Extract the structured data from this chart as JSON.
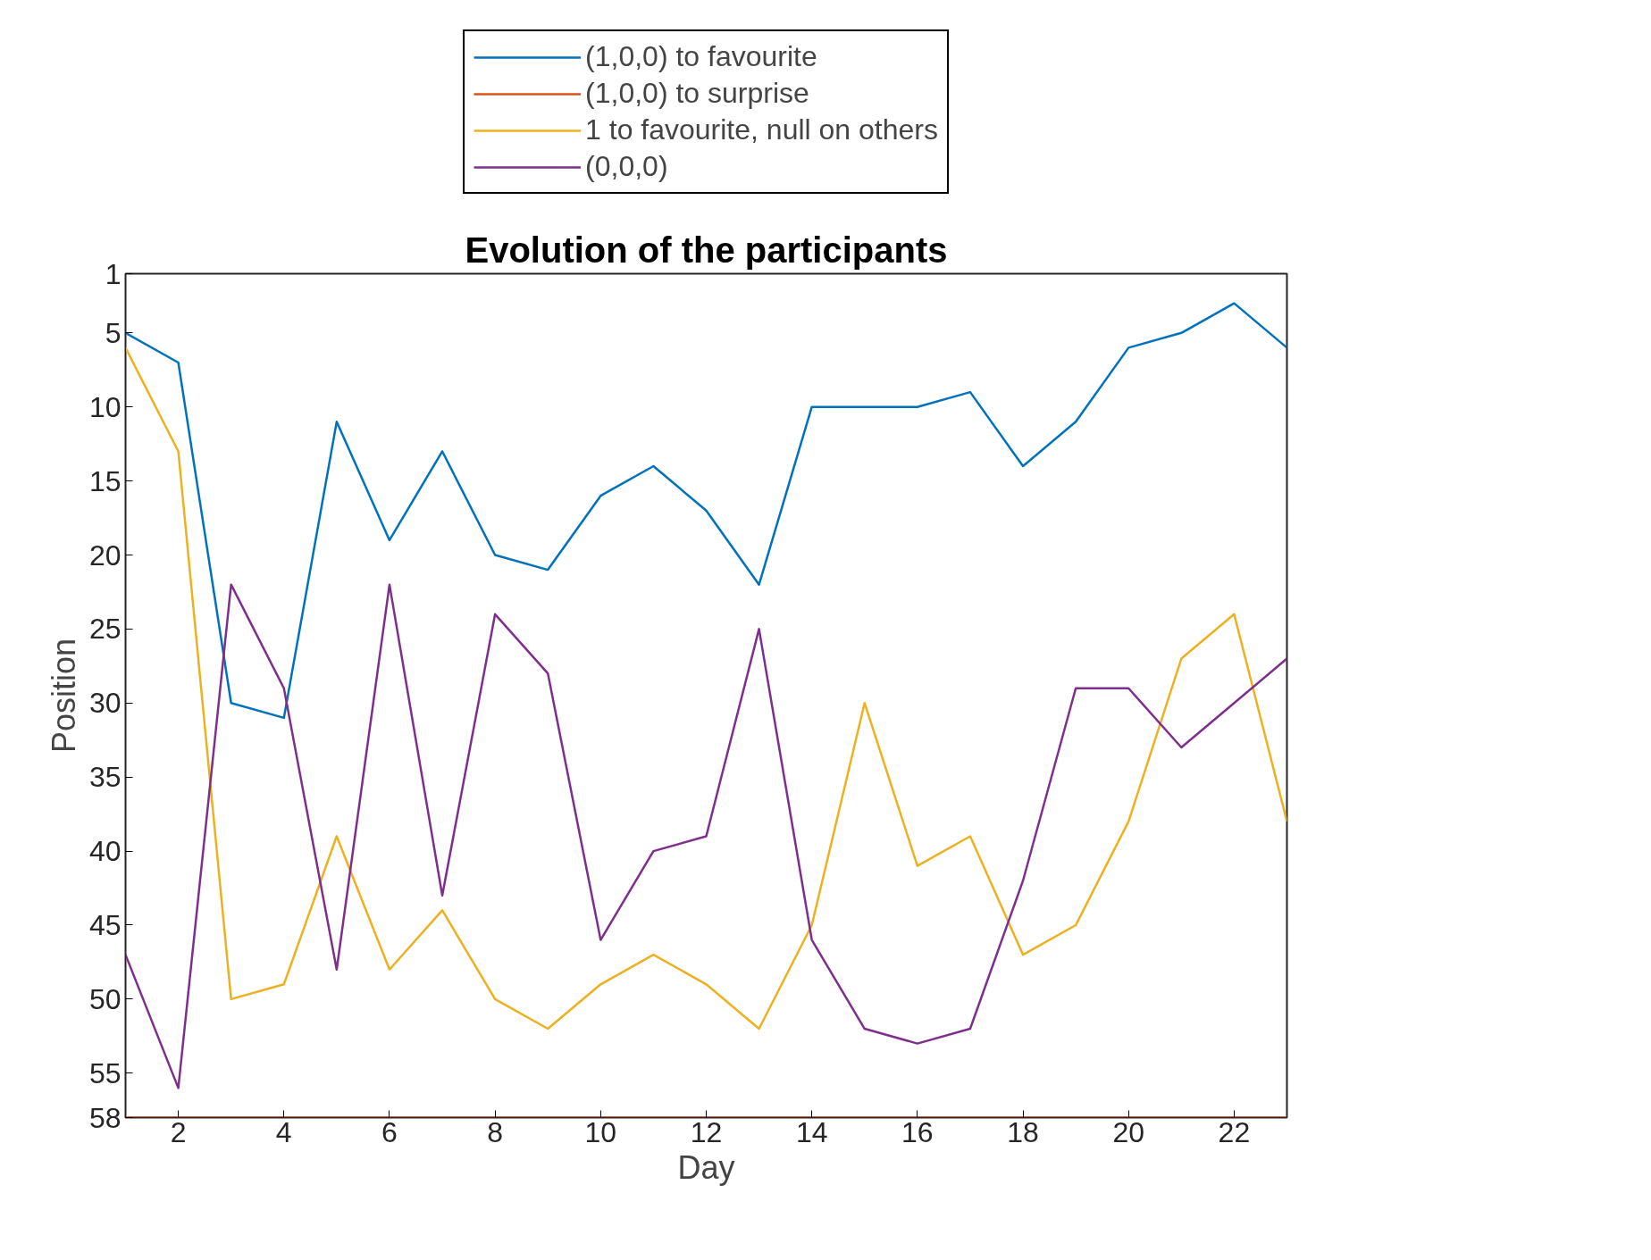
{
  "chart_data": {
    "type": "line",
    "title": "Evolution of the participants",
    "xlabel": "Day",
    "ylabel": "Position",
    "x": [
      1,
      2,
      3,
      4,
      5,
      6,
      7,
      8,
      9,
      10,
      11,
      12,
      13,
      14,
      15,
      16,
      17,
      18,
      19,
      20,
      21,
      22,
      23
    ],
    "xlim": [
      1,
      23
    ],
    "xticks": [
      2,
      4,
      6,
      8,
      10,
      12,
      14,
      16,
      18,
      20,
      22
    ],
    "ylim": [
      58,
      1
    ],
    "yticks": [
      1,
      5,
      10,
      15,
      20,
      25,
      30,
      35,
      40,
      45,
      50,
      55,
      58
    ],
    "series": [
      {
        "name": "(1,0,0) to favourite",
        "color": "#0072bd",
        "values": [
          5,
          7,
          30,
          31,
          11,
          19,
          13,
          20,
          21,
          16,
          14,
          17,
          22,
          10,
          10,
          10,
          9,
          14,
          11,
          6,
          5,
          3,
          6
        ]
      },
      {
        "name": "(1,0,0) to surprise",
        "color": "#d95319",
        "values": [
          58,
          58,
          58,
          58,
          58,
          58,
          58,
          58,
          58,
          58,
          58,
          58,
          58,
          58,
          58,
          58,
          58,
          58,
          58,
          58,
          58,
          58,
          58
        ]
      },
      {
        "name": "1 to favourite, null on others",
        "color": "#edb120",
        "values": [
          6,
          13,
          50,
          49,
          39,
          48,
          44,
          50,
          52,
          49,
          47,
          49,
          52,
          45,
          30,
          41,
          39,
          47,
          45,
          38,
          27,
          24,
          38
        ]
      },
      {
        "name": "(0,0,0)",
        "color": "#7e2f8e",
        "values": [
          47,
          56,
          22,
          29,
          48,
          22,
          43,
          24,
          28,
          46,
          40,
          39,
          25,
          46,
          52,
          53,
          52,
          42,
          29,
          29,
          33,
          30,
          27
        ]
      }
    ],
    "grid": false,
    "legend": "top",
    "line_style": "solid"
  }
}
